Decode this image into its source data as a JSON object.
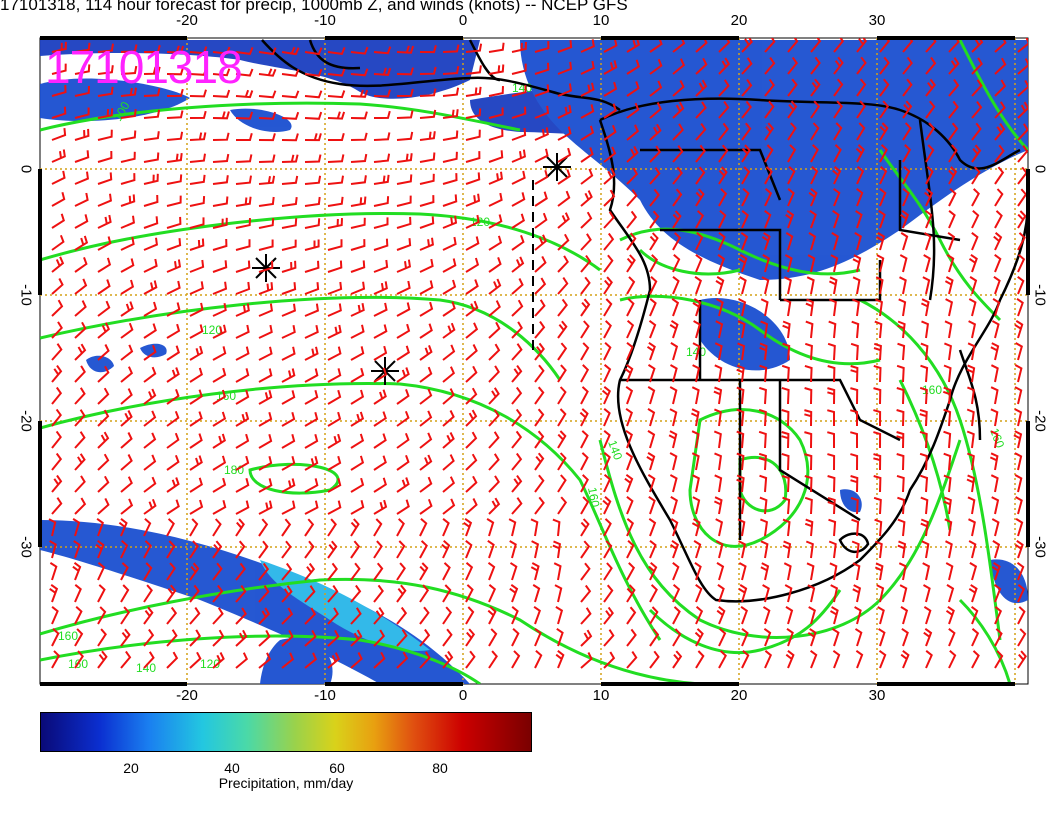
{
  "title": "17101318, 114 hour forecast for precip, 1000mb Z, and winds (knots) -- NCEP GFS",
  "stamp": "17101318",
  "lon_ticks": [
    "-20",
    "-10",
    "0",
    "10",
    "20",
    "30"
  ],
  "lat_ticks": [
    "0",
    "-10",
    "-20",
    "-30"
  ],
  "colorbar": {
    "ticks": [
      "20",
      "40",
      "60",
      "80"
    ],
    "label": "Precipitation, mm/day"
  },
  "contour_labels": [
    "100",
    "120",
    "120",
    "140",
    "160",
    "180",
    "160",
    "160",
    "140",
    "120",
    "140",
    "160",
    "140",
    "160",
    "160"
  ],
  "colors": {
    "contour": "#22dd22",
    "barb": "#ee1111",
    "grid": "#d4a017",
    "coast": "#000000",
    "stamp": "#ff22ff"
  }
}
